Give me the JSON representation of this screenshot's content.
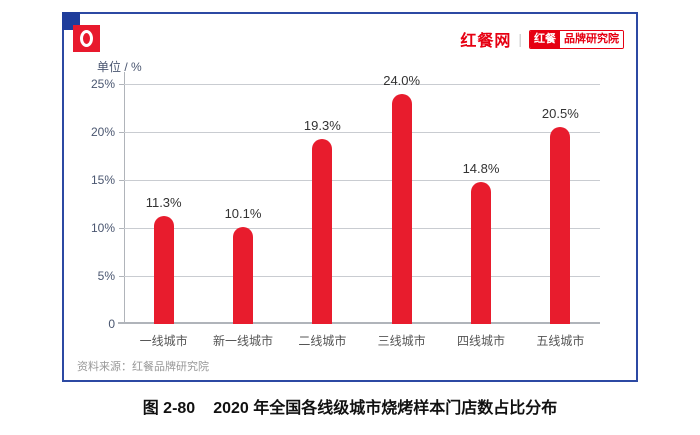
{
  "brand": {
    "logo_icon": "hongcan-logo",
    "site_name": "红餐网",
    "divider": "|",
    "badge_left": "红餐",
    "badge_right": "品牌研究院"
  },
  "chart_data": {
    "type": "bar",
    "title": "2020 年全国各线级城市烧烤样本门店数占比分布",
    "unit_label": "单位 / %",
    "categories": [
      "一线城市",
      "新一线城市",
      "二线城市",
      "三线城市",
      "四线城市",
      "五线城市"
    ],
    "values": [
      11.3,
      10.1,
      19.3,
      24.0,
      14.8,
      20.5
    ],
    "value_labels": [
      "11.3%",
      "10.1%",
      "19.3%",
      "24.0%",
      "14.8%",
      "20.5%"
    ],
    "xlabel": "",
    "ylabel": "单位 / %",
    "ylim": [
      0,
      25
    ],
    "y_ticks": [
      0,
      5,
      10,
      15,
      20,
      25
    ],
    "y_tick_labels": [
      "0",
      "5%",
      "10%",
      "15%",
      "20%",
      "25%"
    ],
    "grid": true,
    "legend": "none",
    "bar_color": "#e81c2d"
  },
  "source_note": "资料来源：红餐品牌研究院",
  "caption": {
    "number": "图 2-80",
    "text": "2020 年全国各线级城市烧烤样本门店数占比分布"
  },
  "colors": {
    "frame_border": "#2c49a3",
    "corner_square": "#1f3d9b",
    "bar": "#e81c2d",
    "brand_red": "#e60012",
    "gridline": "#c9ccd1",
    "axis": "#b0b4ba"
  }
}
